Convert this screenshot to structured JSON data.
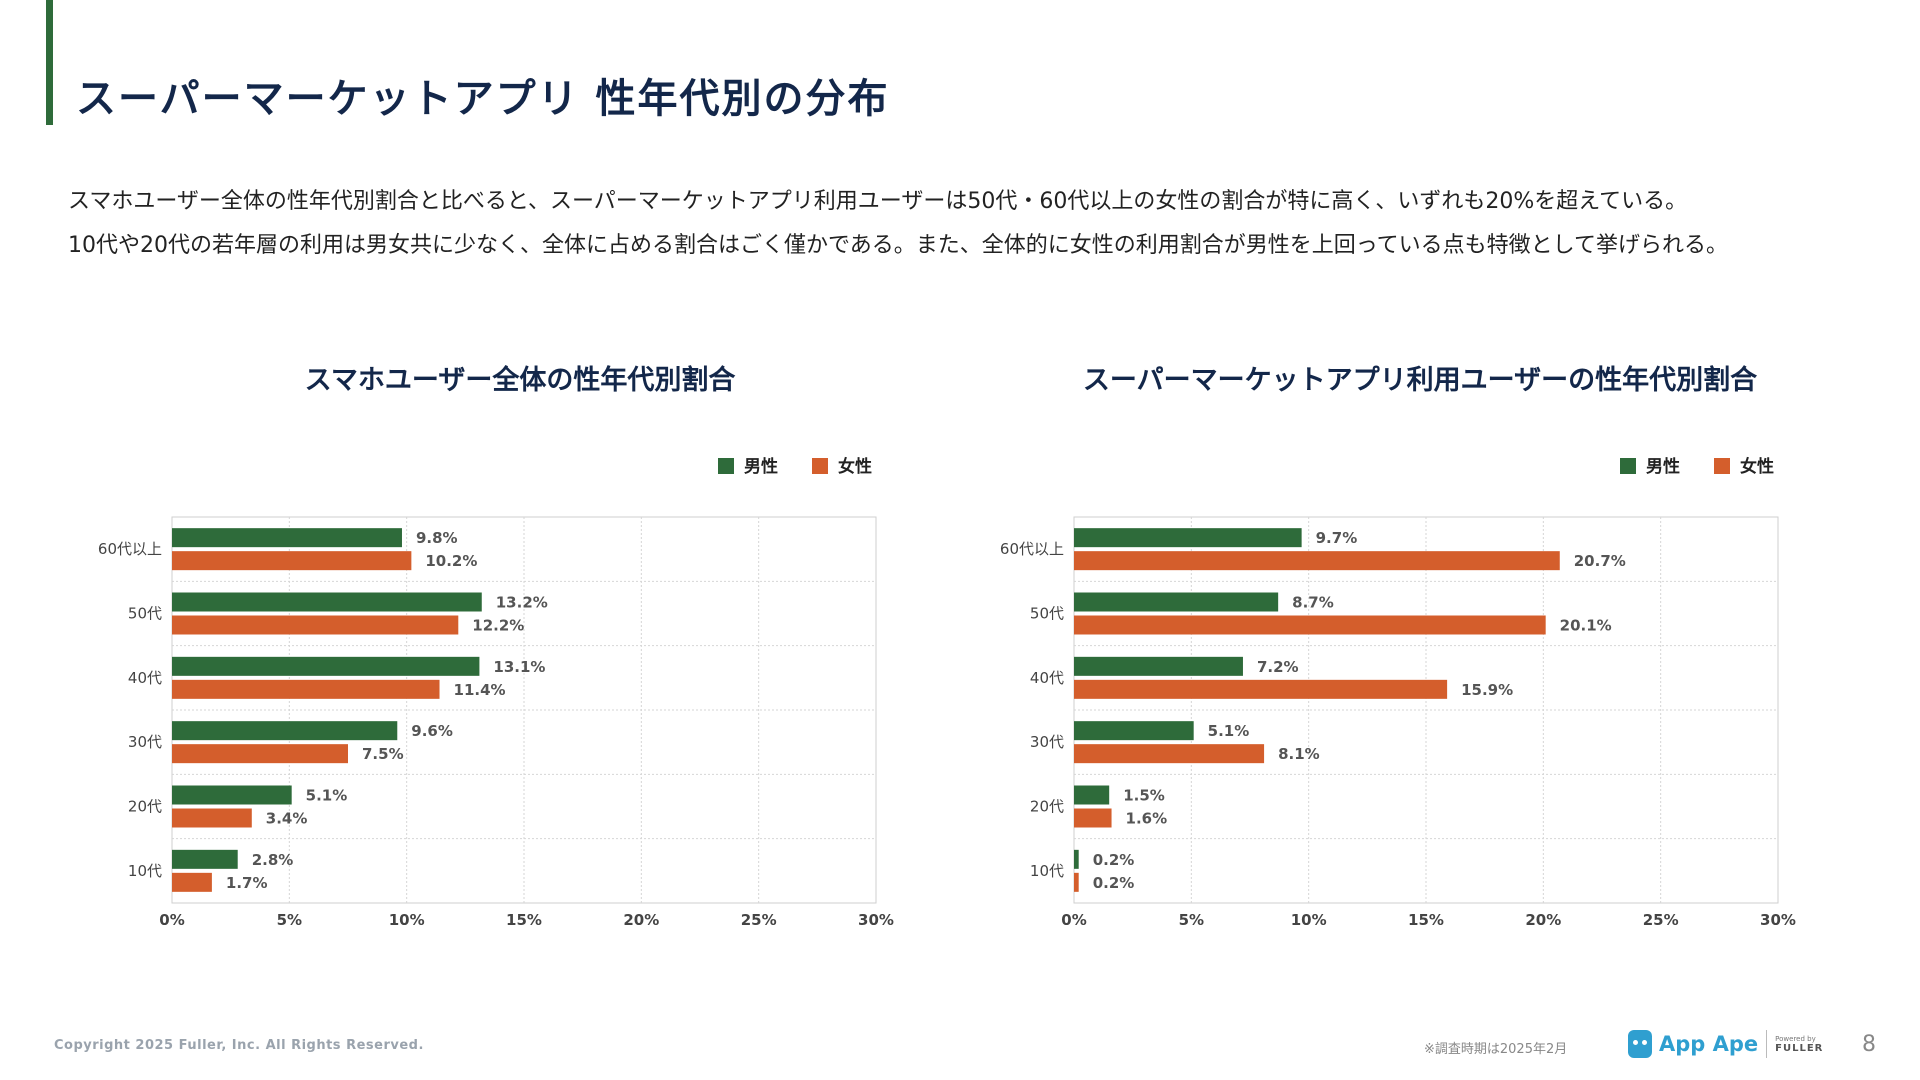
{
  "slide": {
    "title": "スーパーマーケットアプリ 性年代別の分布",
    "description": [
      "スマホユーザー全体の性年代別割合と比べると、スーパーマーケットアプリ利用ユーザーは50代・60代以上の女性の割合が特に高く、いずれも20%を超えている。",
      "10代や20代の若年層の利用は男女共に少なく、全体に占める割合はごく僅かである。また、全体的に女性の利用割合が男性を上回っている点も特徴として挙げられる。"
    ],
    "colors": {
      "male": "#2e6b3a",
      "female": "#d45e2c",
      "title": "#13274a",
      "accent": "#2e6b3a"
    }
  },
  "chart_data": [
    {
      "type": "bar",
      "orientation": "horizontal",
      "title": "スマホユーザー全体の性年代別割合",
      "categories": [
        "60代以上",
        "50代",
        "40代",
        "30代",
        "20代",
        "10代"
      ],
      "series": [
        {
          "name": "男性",
          "values": [
            9.8,
            13.2,
            13.1,
            9.6,
            5.1,
            2.8
          ],
          "labels": [
            "9.8%",
            "13.2%",
            "13.1%",
            "9.6%",
            "5.1%",
            "2.8%"
          ]
        },
        {
          "name": "女性",
          "values": [
            10.2,
            12.2,
            11.4,
            7.5,
            3.4,
            1.7
          ],
          "labels": [
            "10.2%",
            "12.2%",
            "11.4%",
            "7.5%",
            "3.4%",
            "1.7%"
          ]
        }
      ],
      "xlim": [
        0,
        30
      ],
      "xticks": [
        "0%",
        "5%",
        "10%",
        "15%",
        "20%",
        "25%",
        "30%"
      ],
      "legend": "top-right",
      "grid": true
    },
    {
      "type": "bar",
      "orientation": "horizontal",
      "title": "スーパーマーケットアプリ利用ユーザーの性年代別割合",
      "categories": [
        "60代以上",
        "50代",
        "40代",
        "30代",
        "20代",
        "10代"
      ],
      "series": [
        {
          "name": "男性",
          "values": [
            9.7,
            8.7,
            7.2,
            5.1,
            1.5,
            0.2
          ],
          "labels": [
            "9.7%",
            "8.7%",
            "7.2%",
            "5.1%",
            "1.5%",
            "0.2%"
          ]
        },
        {
          "name": "女性",
          "values": [
            20.7,
            20.1,
            15.9,
            8.1,
            1.6,
            0.2
          ],
          "labels": [
            "20.7%",
            "20.1%",
            "15.9%",
            "8.1%",
            "1.6%",
            "0.2%"
          ]
        }
      ],
      "xlim": [
        0,
        30
      ],
      "xticks": [
        "0%",
        "5%",
        "10%",
        "15%",
        "20%",
        "25%",
        "30%"
      ],
      "legend": "top-right",
      "grid": true
    }
  ],
  "footer": {
    "copyright": "Copyright 2025 Fuller, Inc. All Rights Reserved.",
    "note": "※調査時期は2025年2月",
    "logo_text": "App Ape",
    "powered_by": "Powered by",
    "fuller": "FULLER",
    "page_number": "8"
  }
}
